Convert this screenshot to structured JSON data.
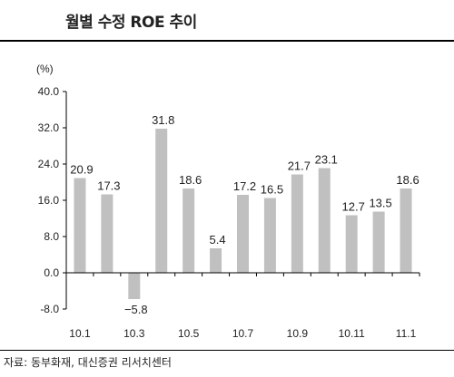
{
  "source": "자료: 동부화재, 대신증권 리서치센터",
  "chart_data": {
    "type": "bar",
    "title": "월별 수정 ROE 추이",
    "ylabel": "(%)",
    "xlabel": "",
    "ylim": [
      -8,
      40
    ],
    "yticks": [
      "40.0",
      "32.0",
      "24.0",
      "16.0",
      "8.0",
      "0.0",
      "-8.0"
    ],
    "ytick_values": [
      40,
      32,
      24,
      16,
      8,
      0,
      -8
    ],
    "categories": [
      "10.1",
      "10.2",
      "10.3",
      "10.4",
      "10.5",
      "10.6",
      "10.7",
      "10.8",
      "10.9",
      "10.10",
      "10.11",
      "10.12",
      "11.1"
    ],
    "xtick_labels": [
      "10.1",
      "",
      "10.3",
      "",
      "10.5",
      "",
      "10.7",
      "",
      "10.9",
      "",
      "10.11",
      "",
      "11.1"
    ],
    "values": [
      20.9,
      17.3,
      -5.8,
      31.8,
      18.6,
      5.4,
      17.2,
      16.5,
      21.7,
      23.1,
      12.7,
      13.5,
      18.6
    ],
    "value_labels": [
      "20.9",
      "17.3",
      "-5.8",
      "31.8",
      "18.6",
      "5.4",
      "17.2",
      "16.5",
      "21.7",
      "23.1",
      "12.7",
      "13.5",
      "18.6"
    ],
    "bar_color": "#c0c0c0",
    "grid": false,
    "legend": "none"
  }
}
